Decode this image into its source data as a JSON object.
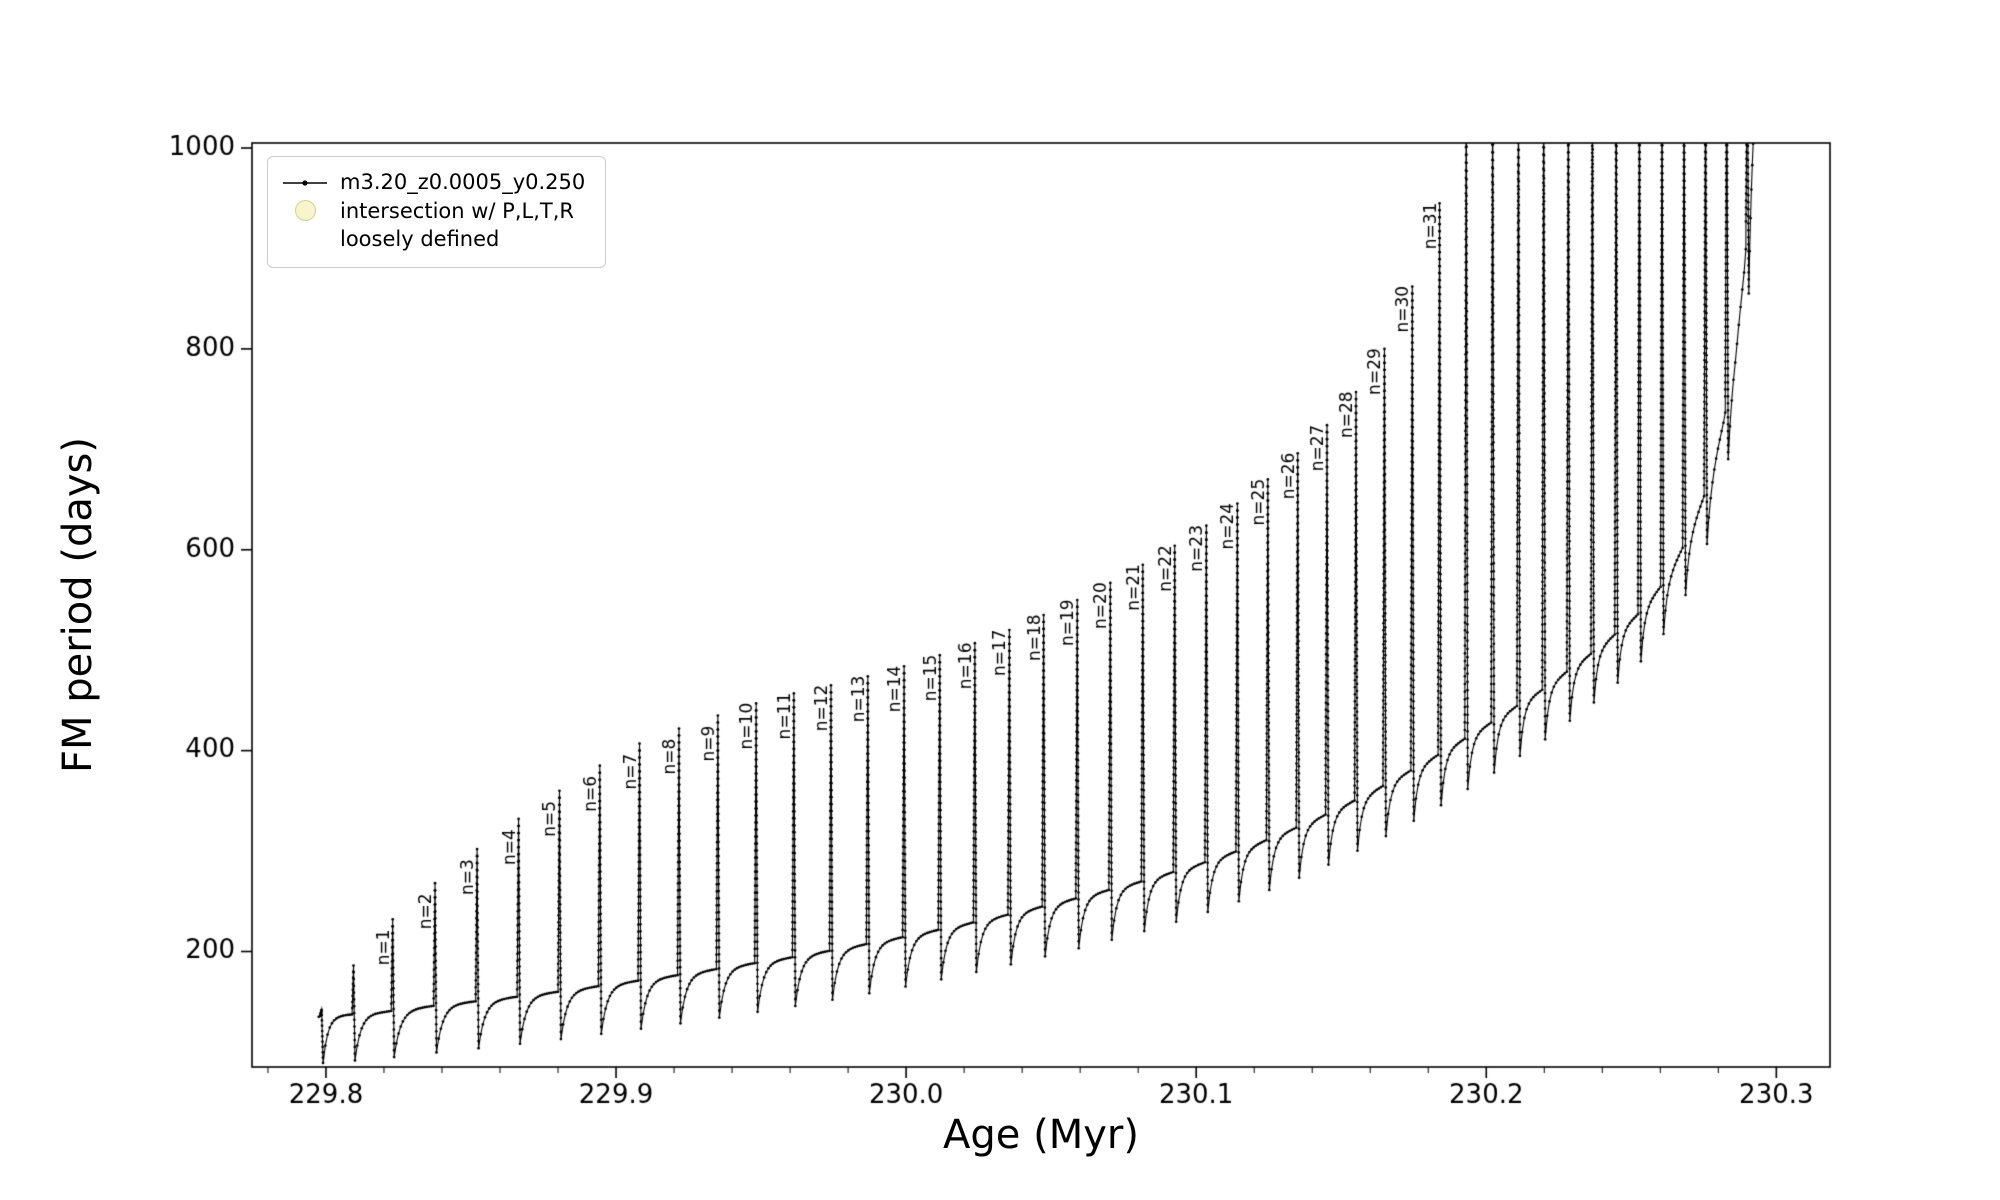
{
  "figure": {
    "background": "#ffffff",
    "axes_color": "#000000"
  },
  "chart_data": {
    "type": "line",
    "title": "",
    "xlabel": "Age (Myr)",
    "ylabel": "FM period (days)",
    "xlim": [
      229.7745,
      230.3185
    ],
    "ylim": [
      85,
      1005
    ],
    "xticks": [
      229.8,
      229.9,
      230.0,
      230.1,
      230.2,
      230.3
    ],
    "xtick_labels": [
      "229.8",
      "229.9",
      "230.0",
      "230.1",
      "230.2",
      "230.3"
    ],
    "yticks": [
      200,
      400,
      600,
      800,
      1000
    ],
    "ytick_labels": [
      "200",
      "400",
      "600",
      "800",
      "1000"
    ],
    "x_minor_step": 0.02,
    "grid": false,
    "legend": {
      "position": "upper-left",
      "entries": [
        {
          "label": "m3.20_z0.0005_y0.250",
          "marker": "line-dot",
          "color": "#000000"
        },
        {
          "label_lines": [
            "intersection w/ P,L,T,R",
            "loosely defined"
          ],
          "marker": "circle",
          "color": "#f0e68c",
          "edge": "#cdc382"
        }
      ]
    },
    "series": [
      {
        "name": "m3.20_z0.0005_y0.250",
        "color": "#000000",
        "marker": "dot",
        "x_start": 229.7975,
        "x_end": 230.2935,
        "spike_half_width": 0.0005,
        "recovery_tau_frac": 0.15,
        "dip": {
          "base": 0.66,
          "slope": 0.55,
          "x0": 229.8,
          "max": 0.95
        },
        "baseline_anchors": [
          [
            229.798,
            135
          ],
          [
            229.82,
            140
          ],
          [
            229.84,
            147
          ],
          [
            229.86,
            153
          ],
          [
            229.88,
            160
          ],
          [
            229.9,
            168
          ],
          [
            229.92,
            176
          ],
          [
            229.94,
            185
          ],
          [
            229.96,
            194
          ],
          [
            229.98,
            204
          ],
          [
            230.0,
            215
          ],
          [
            230.02,
            227
          ],
          [
            230.04,
            240
          ],
          [
            230.06,
            254
          ],
          [
            230.08,
            269
          ],
          [
            230.1,
            286
          ],
          [
            230.12,
            306
          ],
          [
            230.14,
            330
          ],
          [
            230.16,
            358
          ],
          [
            230.18,
            390
          ],
          [
            230.2,
            425
          ],
          [
            230.22,
            462
          ],
          [
            230.24,
            505
          ],
          [
            230.252,
            535
          ],
          [
            230.262,
            570
          ],
          [
            230.27,
            615
          ],
          [
            230.277,
            668
          ],
          [
            230.282,
            730
          ],
          [
            230.286,
            800
          ],
          [
            230.289,
            880
          ],
          [
            230.291,
            960
          ],
          [
            230.2925,
            1040
          ],
          [
            230.2935,
            1130
          ]
        ],
        "spikes": [
          {
            "x": 229.7985,
            "peak": 142
          },
          {
            "x": 229.8095,
            "peak": 186
          },
          {
            "x": 229.823,
            "peak": 232,
            "label": "n=1"
          },
          {
            "x": 229.8376,
            "peak": 268,
            "label": "n=2"
          },
          {
            "x": 229.8521,
            "peak": 302,
            "label": "n=3"
          },
          {
            "x": 229.8664,
            "peak": 332,
            "label": "n=4"
          },
          {
            "x": 229.8805,
            "peak": 360,
            "label": "n=5"
          },
          {
            "x": 229.8944,
            "peak": 385,
            "label": "n=6"
          },
          {
            "x": 229.9081,
            "peak": 407,
            "label": "n=7"
          },
          {
            "x": 229.9217,
            "peak": 422,
            "label": "n=8"
          },
          {
            "x": 229.9351,
            "peak": 435,
            "label": "n=9"
          },
          {
            "x": 229.9483,
            "peak": 447,
            "label": "n=10"
          },
          {
            "x": 229.9613,
            "peak": 457,
            "label": "n=11"
          },
          {
            "x": 229.9741,
            "peak": 465,
            "label": "n=12"
          },
          {
            "x": 229.9868,
            "peak": 474,
            "label": "n=13"
          },
          {
            "x": 229.9993,
            "peak": 484,
            "label": "n=14"
          },
          {
            "x": 230.0116,
            "peak": 495,
            "label": "n=15"
          },
          {
            "x": 230.0237,
            "peak": 507,
            "label": "n=16"
          },
          {
            "x": 230.0356,
            "peak": 520,
            "label": "n=17"
          },
          {
            "x": 230.0474,
            "peak": 535,
            "label": "n=18"
          },
          {
            "x": 230.059,
            "peak": 550,
            "label": "n=19"
          },
          {
            "x": 230.0704,
            "peak": 567,
            "label": "n=20"
          },
          {
            "x": 230.0816,
            "peak": 585,
            "label": "n=21"
          },
          {
            "x": 230.0926,
            "peak": 604,
            "label": "n=22"
          },
          {
            "x": 230.1035,
            "peak": 624,
            "label": "n=23"
          },
          {
            "x": 230.1142,
            "peak": 646,
            "label": "n=24"
          },
          {
            "x": 230.1247,
            "peak": 670,
            "label": "n=25"
          },
          {
            "x": 230.135,
            "peak": 696,
            "label": "n=26"
          },
          {
            "x": 230.1451,
            "peak": 724,
            "label": "n=27"
          },
          {
            "x": 230.1551,
            "peak": 757,
            "label": "n=28"
          },
          {
            "x": 230.1649,
            "peak": 800,
            "label": "n=29"
          },
          {
            "x": 230.1745,
            "peak": 862,
            "label": "n=30"
          },
          {
            "x": 230.1839,
            "peak": 945,
            "label": "n=31"
          },
          {
            "x": 230.1931,
            "peak": 1100
          },
          {
            "x": 230.2022,
            "peak": 1100
          },
          {
            "x": 230.2111,
            "peak": 1100
          },
          {
            "x": 230.2198,
            "peak": 1100
          },
          {
            "x": 230.2283,
            "peak": 1100
          },
          {
            "x": 230.2366,
            "peak": 1100
          },
          {
            "x": 230.2448,
            "peak": 1100
          },
          {
            "x": 230.2528,
            "peak": 1100
          },
          {
            "x": 230.2606,
            "peak": 1100
          },
          {
            "x": 230.2682,
            "peak": 1100
          },
          {
            "x": 230.2756,
            "peak": 1100
          },
          {
            "x": 230.2829,
            "peak": 1100
          },
          {
            "x": 230.29,
            "peak": 1100
          }
        ]
      }
    ]
  }
}
